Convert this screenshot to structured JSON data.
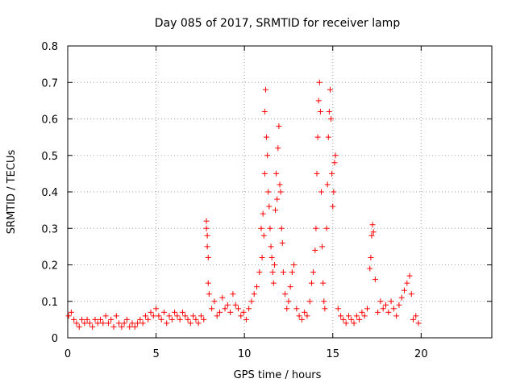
{
  "chart_data": {
    "type": "scatter",
    "title": "Day 085 of 2017, SRMTID for receiver lamp",
    "xlabel": "GPS time / hours",
    "ylabel": "SRMTID / TECUs",
    "xlim": [
      0,
      24
    ],
    "ylim": [
      0,
      0.8
    ],
    "xticks": [
      0,
      5,
      10,
      15,
      20
    ],
    "yticks": [
      0,
      0.1,
      0.2,
      0.3,
      0.4,
      0.5,
      0.6,
      0.7,
      0.8
    ],
    "xtick_labels": [
      "0",
      "5",
      "10",
      "15",
      "20"
    ],
    "ytick_labels": [
      "0",
      "0.1",
      "0.2",
      "0.3",
      "0.4",
      "0.5",
      "0.6",
      "0.7",
      "0.8"
    ],
    "grid": true,
    "marker": "+",
    "color": "#ff0000",
    "series": [
      {
        "name": "SRMTID",
        "points": [
          [
            0.05,
            0.06
          ],
          [
            0.2,
            0.07
          ],
          [
            0.35,
            0.05
          ],
          [
            0.5,
            0.04
          ],
          [
            0.65,
            0.03
          ],
          [
            0.8,
            0.05
          ],
          [
            0.95,
            0.04
          ],
          [
            1.1,
            0.05
          ],
          [
            1.25,
            0.04
          ],
          [
            1.4,
            0.03
          ],
          [
            1.55,
            0.05
          ],
          [
            1.7,
            0.04
          ],
          [
            1.85,
            0.05
          ],
          [
            2.0,
            0.04
          ],
          [
            2.15,
            0.06
          ],
          [
            2.3,
            0.04
          ],
          [
            2.45,
            0.05
          ],
          [
            2.6,
            0.03
          ],
          [
            2.75,
            0.06
          ],
          [
            2.9,
            0.04
          ],
          [
            3.05,
            0.03
          ],
          [
            3.2,
            0.04
          ],
          [
            3.35,
            0.05
          ],
          [
            3.5,
            0.03
          ],
          [
            3.65,
            0.04
          ],
          [
            3.8,
            0.03
          ],
          [
            3.95,
            0.04
          ],
          [
            4.1,
            0.05
          ],
          [
            4.25,
            0.04
          ],
          [
            4.4,
            0.06
          ],
          [
            4.55,
            0.05
          ],
          [
            4.7,
            0.07
          ],
          [
            4.85,
            0.06
          ],
          [
            5.0,
            0.08
          ],
          [
            5.15,
            0.06
          ],
          [
            5.3,
            0.05
          ],
          [
            5.45,
            0.07
          ],
          [
            5.6,
            0.04
          ],
          [
            5.75,
            0.06
          ],
          [
            5.9,
            0.05
          ],
          [
            6.05,
            0.07
          ],
          [
            6.2,
            0.06
          ],
          [
            6.35,
            0.05
          ],
          [
            6.5,
            0.07
          ],
          [
            6.65,
            0.06
          ],
          [
            6.8,
            0.05
          ],
          [
            6.95,
            0.04
          ],
          [
            7.1,
            0.06
          ],
          [
            7.25,
            0.05
          ],
          [
            7.4,
            0.04
          ],
          [
            7.55,
            0.06
          ],
          [
            7.7,
            0.05
          ],
          [
            7.85,
            0.32
          ],
          [
            7.85,
            0.3
          ],
          [
            7.9,
            0.28
          ],
          [
            7.9,
            0.25
          ],
          [
            7.95,
            0.22
          ],
          [
            7.95,
            0.15
          ],
          [
            8.0,
            0.12
          ],
          [
            8.15,
            0.08
          ],
          [
            8.3,
            0.1
          ],
          [
            8.45,
            0.06
          ],
          [
            8.6,
            0.07
          ],
          [
            8.75,
            0.11
          ],
          [
            8.9,
            0.08
          ],
          [
            9.05,
            0.09
          ],
          [
            9.2,
            0.07
          ],
          [
            9.35,
            0.12
          ],
          [
            9.5,
            0.09
          ],
          [
            9.65,
            0.08
          ],
          [
            9.8,
            0.06
          ],
          [
            9.95,
            0.07
          ],
          [
            10.1,
            0.05
          ],
          [
            10.25,
            0.08
          ],
          [
            10.4,
            0.1
          ],
          [
            10.55,
            0.12
          ],
          [
            10.7,
            0.14
          ],
          [
            10.85,
            0.18
          ],
          [
            10.95,
            0.3
          ],
          [
            11.0,
            0.22
          ],
          [
            11.05,
            0.34
          ],
          [
            11.1,
            0.28
          ],
          [
            11.15,
            0.45
          ],
          [
            11.15,
            0.62
          ],
          [
            11.2,
            0.68
          ],
          [
            11.25,
            0.55
          ],
          [
            11.3,
            0.5
          ],
          [
            11.35,
            0.4
          ],
          [
            11.4,
            0.36
          ],
          [
            11.45,
            0.3
          ],
          [
            11.5,
            0.25
          ],
          [
            11.55,
            0.22
          ],
          [
            11.6,
            0.18
          ],
          [
            11.65,
            0.15
          ],
          [
            11.7,
            0.2
          ],
          [
            11.75,
            0.35
          ],
          [
            11.8,
            0.45
          ],
          [
            11.85,
            0.38
          ],
          [
            11.9,
            0.52
          ],
          [
            11.95,
            0.58
          ],
          [
            12.0,
            0.42
          ],
          [
            12.05,
            0.4
          ],
          [
            12.1,
            0.3
          ],
          [
            12.15,
            0.26
          ],
          [
            12.2,
            0.18
          ],
          [
            12.3,
            0.12
          ],
          [
            12.4,
            0.08
          ],
          [
            12.5,
            0.1
          ],
          [
            12.6,
            0.14
          ],
          [
            12.7,
            0.18
          ],
          [
            12.8,
            0.2
          ],
          [
            12.95,
            0.08
          ],
          [
            13.1,
            0.06
          ],
          [
            13.25,
            0.05
          ],
          [
            13.4,
            0.07
          ],
          [
            13.55,
            0.06
          ],
          [
            13.7,
            0.1
          ],
          [
            13.8,
            0.15
          ],
          [
            13.9,
            0.18
          ],
          [
            14.0,
            0.24
          ],
          [
            14.05,
            0.3
          ],
          [
            14.1,
            0.45
          ],
          [
            14.15,
            0.55
          ],
          [
            14.2,
            0.65
          ],
          [
            14.25,
            0.7
          ],
          [
            14.3,
            0.62
          ],
          [
            14.35,
            0.4
          ],
          [
            14.4,
            0.25
          ],
          [
            14.45,
            0.15
          ],
          [
            14.5,
            0.1
          ],
          [
            14.55,
            0.08
          ],
          [
            14.65,
            0.3
          ],
          [
            14.7,
            0.42
          ],
          [
            14.75,
            0.55
          ],
          [
            14.8,
            0.62
          ],
          [
            14.85,
            0.68
          ],
          [
            14.9,
            0.6
          ],
          [
            14.95,
            0.45
          ],
          [
            15.0,
            0.36
          ],
          [
            15.05,
            0.4
          ],
          [
            15.1,
            0.48
          ],
          [
            15.15,
            0.5
          ],
          [
            15.3,
            0.08
          ],
          [
            15.45,
            0.06
          ],
          [
            15.6,
            0.05
          ],
          [
            15.75,
            0.04
          ],
          [
            15.9,
            0.06
          ],
          [
            16.05,
            0.05
          ],
          [
            16.2,
            0.04
          ],
          [
            16.35,
            0.06
          ],
          [
            16.5,
            0.05
          ],
          [
            16.65,
            0.07
          ],
          [
            16.8,
            0.06
          ],
          [
            16.95,
            0.08
          ],
          [
            17.1,
            0.19
          ],
          [
            17.15,
            0.22
          ],
          [
            17.2,
            0.28
          ],
          [
            17.25,
            0.31
          ],
          [
            17.3,
            0.29
          ],
          [
            17.4,
            0.16
          ],
          [
            17.55,
            0.07
          ],
          [
            17.7,
            0.1
          ],
          [
            17.85,
            0.08
          ],
          [
            18.0,
            0.09
          ],
          [
            18.15,
            0.07
          ],
          [
            18.3,
            0.1
          ],
          [
            18.45,
            0.08
          ],
          [
            18.6,
            0.06
          ],
          [
            18.75,
            0.09
          ],
          [
            18.9,
            0.11
          ],
          [
            19.05,
            0.13
          ],
          [
            19.2,
            0.15
          ],
          [
            19.35,
            0.17
          ],
          [
            19.45,
            0.12
          ],
          [
            19.55,
            0.05
          ],
          [
            19.7,
            0.06
          ],
          [
            19.85,
            0.04
          ]
        ]
      }
    ]
  }
}
